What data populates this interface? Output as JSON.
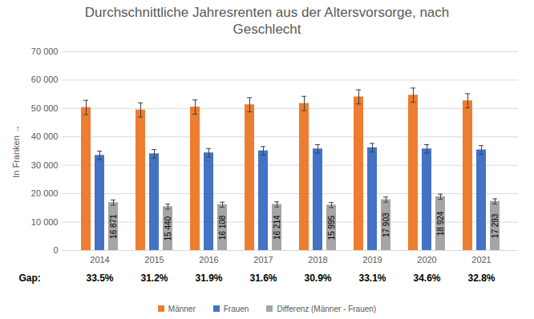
{
  "chart_data": {
    "type": "bar",
    "title": "Durchschnittliche Jahresrenten aus der Altersvorsorge, nach Geschlecht",
    "y_label": "In Franken",
    "categories": [
      "2014",
      "2015",
      "2016",
      "2017",
      "2018",
      "2019",
      "2020",
      "2021"
    ],
    "series": [
      {
        "name": "Männer",
        "color": "#ED7D31",
        "values": [
          50360,
          49490,
          50500,
          51310,
          51760,
          54090,
          54690,
          52720
        ],
        "errors": [
          2500,
          2500,
          2500,
          2500,
          2500,
          2500,
          2500,
          2500
        ]
      },
      {
        "name": "Frauen",
        "color": "#4472C4",
        "values": [
          33489,
          34050,
          34392,
          35096,
          35765,
          36187,
          35766,
          35427
        ],
        "errors": [
          1500,
          1500,
          1500,
          1500,
          1500,
          1500,
          1500,
          1500
        ]
      },
      {
        "name": "Differenz (Männer - Frauen)",
        "color": "#A5A5A5",
        "values": [
          16871,
          15440,
          16108,
          16214,
          15995,
          17903,
          18924,
          17293
        ],
        "errors": [
          900,
          900,
          900,
          900,
          900,
          900,
          900,
          900
        ],
        "data_labels": true,
        "value_labels": [
          "16 871",
          "15 440",
          "16 108",
          "16 214",
          "15 995",
          "17 903",
          "18 924",
          "17 293"
        ]
      }
    ],
    "gap": {
      "label": "Gap:",
      "labels": [
        "33.5%",
        "31.2%",
        "31.9%",
        "31.6%",
        "30.9%",
        "33.1%",
        "34.6%",
        "32.8%"
      ]
    },
    "ylim": [
      0,
      70000
    ],
    "yticks": [
      0,
      {
        "value": 10000,
        "label": "10 000"
      },
      {
        "value": 20000,
        "label": "20 000"
      },
      {
        "value": 30000,
        "label": "30 000"
      },
      {
        "value": 40000,
        "label": "40 000"
      },
      {
        "value": 50000,
        "label": "50 000"
      },
      {
        "value": 60000,
        "label": "60 000"
      },
      {
        "value": 70000,
        "label": "70 000"
      }
    ],
    "grid": true,
    "legend": "bottom"
  }
}
